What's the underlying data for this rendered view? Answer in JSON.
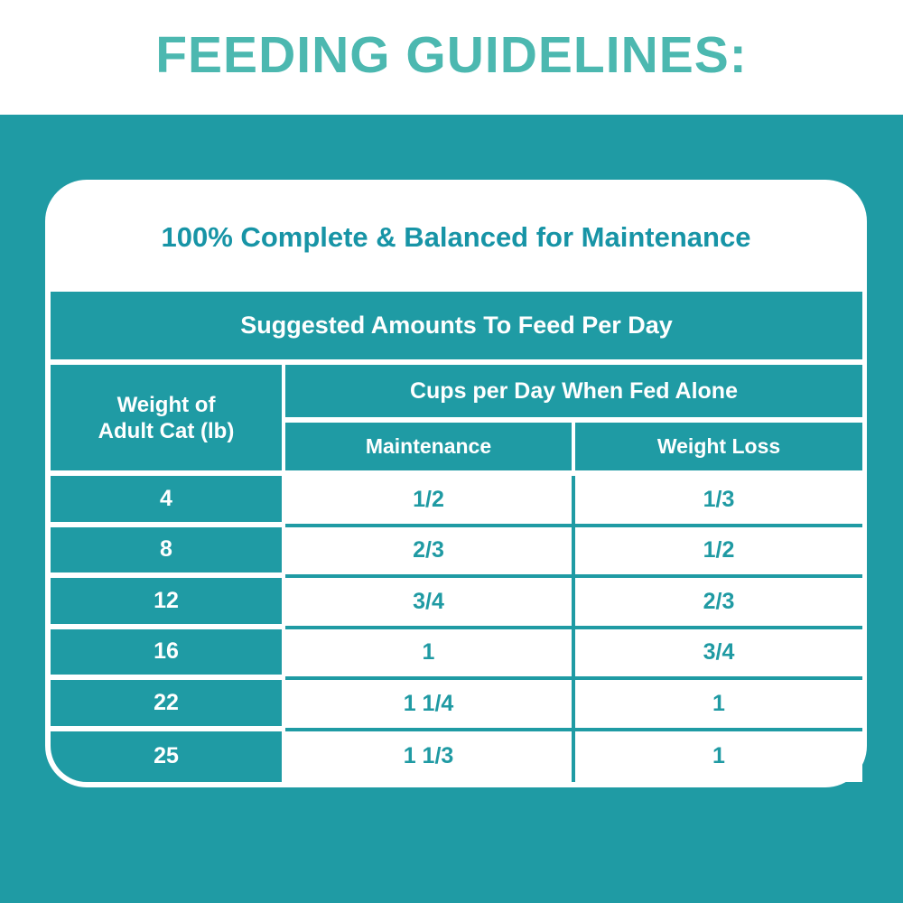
{
  "colors": {
    "page_teal": "#1f9ba4",
    "title_teal": "#4cb8b0",
    "headline_teal": "#1794a6",
    "value_teal": "#1f9aa3",
    "white": "#ffffff"
  },
  "header": {
    "title": "FEEDING GUIDELINES:"
  },
  "card": {
    "headline": "100% Complete & Balanced for Maintenance",
    "table": {
      "main_header": "Suggested Amounts To Feed Per Day",
      "weight_col_line1": "Weight of",
      "weight_col_line2": "Adult Cat (lb)",
      "cups_header": "Cups per Day When Fed Alone",
      "col_maintenance": "Maintenance",
      "col_weight_loss": "Weight Loss",
      "rows": [
        {
          "weight": "4",
          "maintenance": "1/2",
          "weight_loss": "1/3"
        },
        {
          "weight": "8",
          "maintenance": "2/3",
          "weight_loss": "1/2"
        },
        {
          "weight": "12",
          "maintenance": "3/4",
          "weight_loss": "2/3"
        },
        {
          "weight": "16",
          "maintenance": "1",
          "weight_loss": "3/4"
        },
        {
          "weight": "22",
          "maintenance": "1 1/4",
          "weight_loss": "1"
        },
        {
          "weight": "25",
          "maintenance": "1 1/3",
          "weight_loss": "1"
        }
      ]
    }
  }
}
